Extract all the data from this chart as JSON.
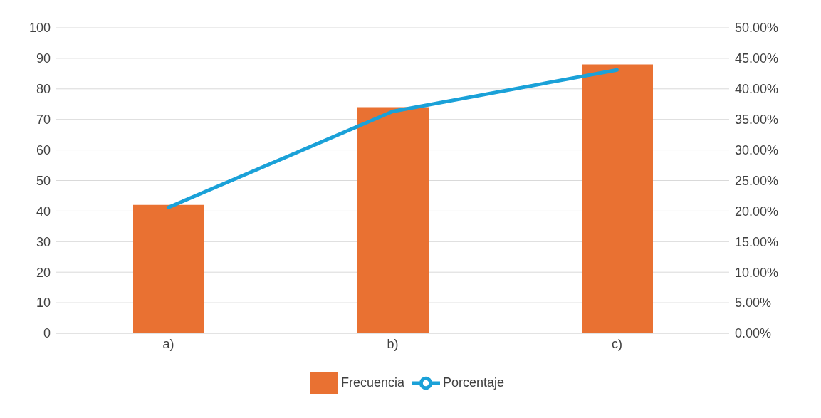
{
  "chart_data": {
    "type": "bar",
    "categories": [
      "a)",
      "b)",
      "c)"
    ],
    "series": [
      {
        "name": "Frecuencia",
        "color": "#e97132",
        "values": [
          42,
          74,
          88
        ]
      },
      {
        "name": "Porcentaje",
        "type": "line",
        "axis": "y2",
        "color": "#1aa1d8",
        "values": [
          20.6,
          36.3,
          43.1
        ]
      }
    ],
    "ylim": [
      0,
      100
    ],
    "yticks": [
      0,
      10,
      20,
      30,
      40,
      50,
      60,
      70,
      80,
      90,
      100
    ],
    "y2lim": [
      0,
      50
    ],
    "y2ticks": [
      {
        "value": 0,
        "label": "0.00%"
      },
      {
        "value": 5,
        "label": "5.00%"
      },
      {
        "value": 10,
        "label": "10.00%"
      },
      {
        "value": 15,
        "label": "15.00%"
      },
      {
        "value": 20,
        "label": "20.00%"
      },
      {
        "value": 25,
        "label": "25.00%"
      },
      {
        "value": 30,
        "label": "30.00%"
      },
      {
        "value": 35,
        "label": "35.00%"
      },
      {
        "value": 40,
        "label": "40.00%"
      },
      {
        "value": 45,
        "label": "45.00%"
      },
      {
        "value": 50,
        "label": "50.00%"
      }
    ],
    "grid": "y",
    "legend": "bottom",
    "marker": "none",
    "line_style": "solid"
  }
}
